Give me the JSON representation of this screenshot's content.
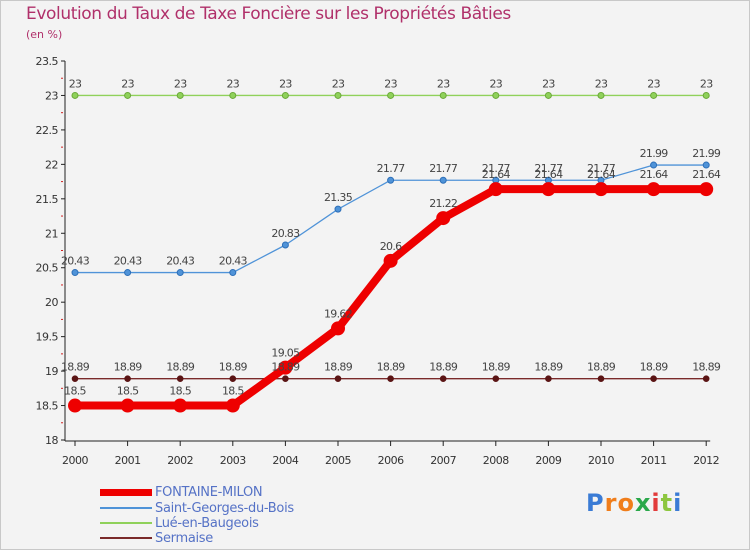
{
  "chart_data": {
    "type": "line",
    "title": "Evolution du Taux de Taxe Foncière sur les Propriétés Bâties",
    "subtitle": "(en %)",
    "xlabel": "",
    "ylabel": "",
    "categories": [
      "2000",
      "2001",
      "2002",
      "2003",
      "2004",
      "2005",
      "2006",
      "2007",
      "2008",
      "2009",
      "2010",
      "2011",
      "2012"
    ],
    "ylim": [
      18,
      23.5
    ],
    "yticks": [
      "18",
      "18.5",
      "19",
      "19.5",
      "20",
      "20.5",
      "21",
      "21.5",
      "22",
      "22.5",
      "23",
      "23.5"
    ],
    "grid": false,
    "legend_position": "bottom-left",
    "series": [
      {
        "name": "FONTAINE-MILON",
        "color": "#ee0000",
        "values": [
          18.5,
          18.5,
          18.5,
          18.5,
          19.05,
          19.62,
          20.6,
          21.22,
          21.64,
          21.64,
          21.64,
          21.64,
          21.64
        ],
        "labels": [
          "18.5",
          "18.5",
          "18.5",
          "18.5",
          "19.05",
          "19.62",
          "20.6",
          "21.22",
          "21.64",
          "21.64",
          "21.64",
          "21.64",
          "21.64"
        ]
      },
      {
        "name": "Saint-Georges-du-Bois",
        "color": "#4f93d8",
        "values": [
          20.43,
          20.43,
          20.43,
          20.43,
          20.83,
          21.35,
          21.77,
          21.77,
          21.77,
          21.77,
          21.77,
          21.99,
          21.99
        ],
        "labels": [
          "20.43",
          "20.43",
          "20.43",
          "20.43",
          "20.83",
          "21.35",
          "21.77",
          "21.77",
          "21.77",
          "21.77",
          "21.77",
          "21.99",
          "21.99"
        ]
      },
      {
        "name": "Lué-en-Baugeois",
        "color": "#8fd15a",
        "values": [
          23,
          23,
          23,
          23,
          23,
          23,
          23,
          23,
          23,
          23,
          23,
          23,
          23
        ],
        "labels": [
          "23",
          "23",
          "23",
          "23",
          "23",
          "23",
          "23",
          "23",
          "23",
          "23",
          "23",
          "23",
          "23"
        ]
      },
      {
        "name": "Sermaise",
        "color": "#7a2a2a",
        "values": [
          18.89,
          18.89,
          18.89,
          18.89,
          18.89,
          18.89,
          18.89,
          18.89,
          18.89,
          18.89,
          18.89,
          18.89,
          18.89
        ],
        "labels": [
          "18.89",
          "18.89",
          "18.89",
          "18.89",
          "18.89",
          "18.89",
          "18.89",
          "18.89",
          "18.89",
          "18.89",
          "18.89",
          "18.89",
          "18.89"
        ]
      }
    ]
  },
  "logo": {
    "text": "Proxiti",
    "letters": [
      "P",
      "r",
      "o",
      "x",
      "i",
      "t",
      "i"
    ],
    "colors": [
      "#3a7bd5",
      "#f07d1a",
      "#f07d1a",
      "#2aa84a",
      "#e23b3b",
      "#8dc63f",
      "#3a7bd5"
    ]
  }
}
